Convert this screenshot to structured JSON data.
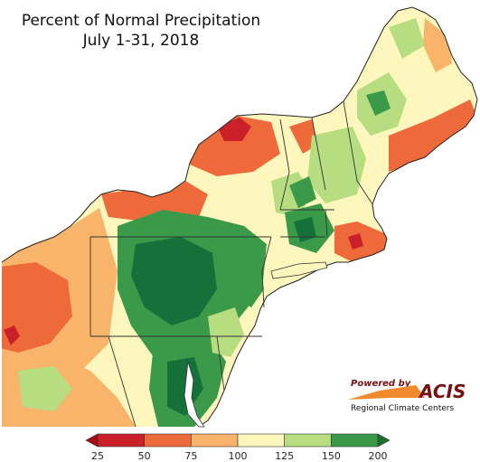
{
  "title": {
    "line1": "Percent of Normal Precipitation",
    "line2": "July 1-31, 2018"
  },
  "legend": {
    "ticks": [
      "25",
      "50",
      "75",
      "100",
      "125",
      "150",
      "200"
    ],
    "colors": [
      "#c9202a",
      "#ef6a3a",
      "#f7b46a",
      "#fdf6bd",
      "#b6dd80",
      "#3a9a4a"
    ],
    "low_arrow_color": "#a50f15",
    "high_arrow_color": "#1a6e2e"
  },
  "logo": {
    "powered_by": "Powered by",
    "acis": "ACIS",
    "rcc": "Regional Climate Centers"
  },
  "colors": {
    "water": "#ffffff",
    "dry_extreme": "#c9202a",
    "dry": "#ef6a3a",
    "below": "#f7b46a",
    "near": "#fdf6bd",
    "above": "#b6dd80",
    "wet": "#3a9a4a",
    "wet_extreme": "#16703a"
  }
}
